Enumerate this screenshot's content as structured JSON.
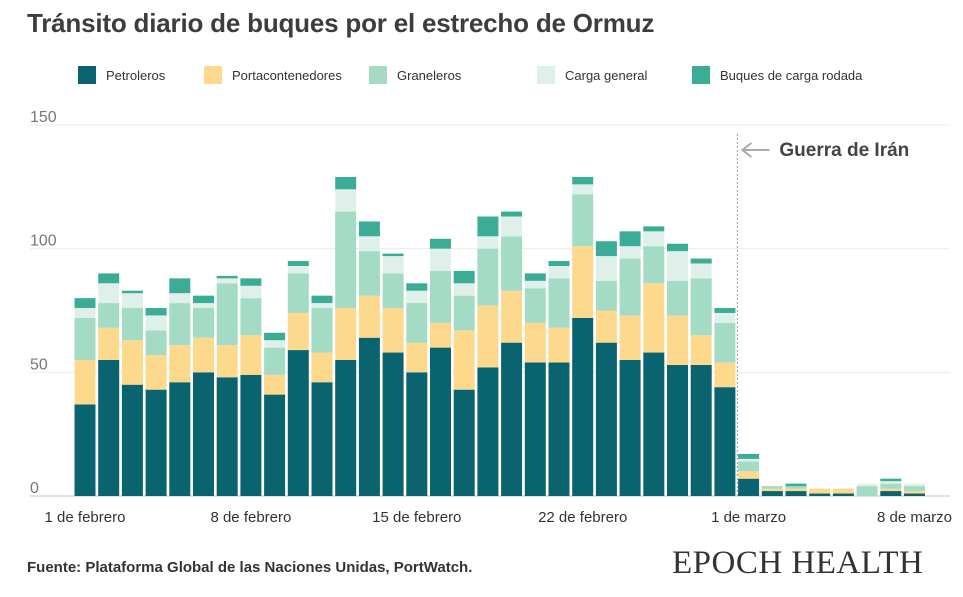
{
  "title": "Tránsito diario de buques por el estrecho de Ormuz",
  "source": "Fuente: Plataforma Global de las Naciones Unidas, PortWatch.",
  "brand": "EPOCH HEALTH",
  "chart_data": {
    "type": "bar",
    "stacked": true,
    "grid": true,
    "legend_position": "top",
    "ylim": [
      0,
      150
    ],
    "yticks": [
      0,
      50,
      100,
      150
    ],
    "x_tick_labels": [
      "1 de febrero",
      "8 de febrero",
      "15 de febrero",
      "22 de febrero",
      "1 de marzo",
      "8 de marzo"
    ],
    "categories": [
      "2026-02-01",
      "2026-02-02",
      "2026-02-03",
      "2026-02-04",
      "2026-02-05",
      "2026-02-06",
      "2026-02-07",
      "2026-02-08",
      "2026-02-09",
      "2026-02-10",
      "2026-02-11",
      "2026-02-12",
      "2026-02-13",
      "2026-02-14",
      "2026-02-15",
      "2026-02-16",
      "2026-02-17",
      "2026-02-18",
      "2026-02-19",
      "2026-02-20",
      "2026-02-21",
      "2026-02-22",
      "2026-02-23",
      "2026-02-24",
      "2026-02-25",
      "2026-02-26",
      "2026-02-27",
      "2026-02-28",
      "2026-03-01",
      "2026-03-02",
      "2026-03-03",
      "2026-03-04",
      "2026-03-05",
      "2026-03-06",
      "2026-03-07",
      "2026-03-08"
    ],
    "series": [
      {
        "name": "Petroleros",
        "color": "#0a6470",
        "values": [
          37,
          55,
          45,
          43,
          46,
          50,
          48,
          49,
          41,
          59,
          46,
          55,
          64,
          58,
          50,
          60,
          43,
          52,
          62,
          54,
          54,
          72,
          62,
          55,
          58,
          53,
          53,
          44,
          7,
          2,
          2,
          1,
          1,
          0,
          2,
          1
        ]
      },
      {
        "name": "Portacontenedores",
        "color": "#fdd98e",
        "values": [
          18,
          13,
          18,
          14,
          15,
          14,
          13,
          16,
          8,
          15,
          12,
          21,
          17,
          18,
          12,
          10,
          24,
          25,
          21,
          16,
          14,
          29,
          13,
          18,
          28,
          20,
          12,
          10,
          3,
          1,
          1,
          2,
          2,
          0,
          1,
          1
        ]
      },
      {
        "name": "Graneleros",
        "color": "#a3dbc5",
        "values": [
          17,
          10,
          13,
          10,
          17,
          12,
          25,
          15,
          11,
          16,
          18,
          39,
          18,
          14,
          16,
          21,
          14,
          23,
          22,
          14,
          20,
          21,
          12,
          23,
          15,
          14,
          23,
          16,
          4,
          1,
          1,
          0,
          0,
          4,
          2,
          2
        ]
      },
      {
        "name": "Carga general",
        "color": "#dff0ea",
        "values": [
          4,
          8,
          6,
          6,
          4,
          2,
          2,
          5,
          3,
          3,
          2,
          9,
          6,
          7,
          5,
          9,
          5,
          5,
          8,
          3,
          5,
          4,
          10,
          5,
          6,
          12,
          6,
          4,
          1,
          0,
          0,
          0,
          0,
          1,
          1,
          1
        ]
      },
      {
        "name": "Buques de carga rodada",
        "color": "#3bac96",
        "values": [
          4,
          4,
          1,
          3,
          6,
          3,
          1,
          3,
          3,
          2,
          3,
          5,
          6,
          1,
          3,
          4,
          5,
          8,
          2,
          3,
          2,
          3,
          6,
          6,
          2,
          3,
          2,
          2,
          2,
          0,
          1,
          0,
          0,
          0,
          1,
          0
        ]
      }
    ],
    "annotation": {
      "text": "Guerra de Irán",
      "date": "2026-02-29"
    }
  }
}
